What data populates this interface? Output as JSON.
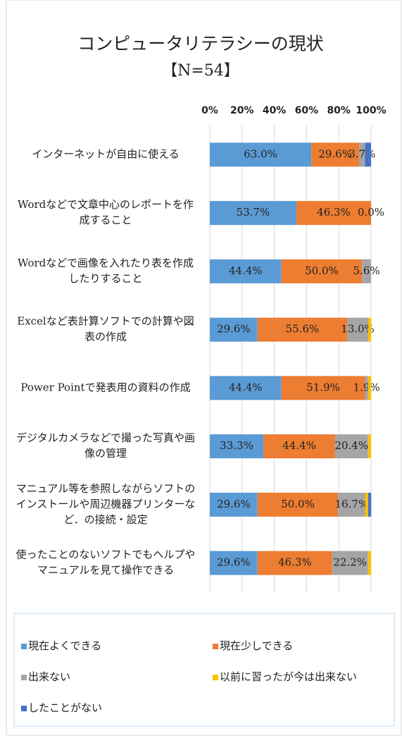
{
  "chart_data": {
    "type": "stacked_bar_horizontal",
    "title": "コンピュータリテラシーの現状",
    "subtitle": "【N=54】",
    "categories": [
      "インターネットが自由に使える",
      "Wordなどで文章中心のレポートを作成すること",
      "Wordなどで画像を入れたり表を作成したりすること",
      "Excelなど表計算ソフトでの計算や図表の作成",
      "Power Pointで発表用の資料の作成",
      "デジタルカメラなどで撮った写真や画像の管理",
      "マニュアル等を参照しながらソフトのインストールや周辺機器プリンターなど．の接続・設定",
      "使ったことのないソフトでもヘルプやマニュアルを見て操作できる"
    ],
    "series": [
      {
        "name": "現在よくできる",
        "color": "#5b9bd5",
        "values": [
          63.0,
          53.7,
          44.4,
          29.6,
          44.4,
          33.3,
          29.6,
          29.6
        ],
        "value_labels": [
          "63.0%",
          "53.7%",
          "44.4%",
          "29.6%",
          "44.4%",
          "33.3%",
          "29.6%",
          "29.6%"
        ]
      },
      {
        "name": "現在少しできる",
        "color": "#ed7d31",
        "values": [
          29.6,
          46.3,
          50.0,
          55.6,
          51.9,
          44.4,
          50.0,
          46.3
        ],
        "value_labels": [
          "29.6%",
          "46.3%",
          "50.0%",
          "55.6%",
          "51.9%",
          "44.4%",
          "50.0%",
          "46.3%"
        ]
      },
      {
        "name": "出来ない",
        "color": "#a5a5a5",
        "values": [
          3.7,
          0.0,
          5.6,
          13.0,
          1.9,
          20.4,
          16.7,
          22.2
        ],
        "value_labels": [
          "3.7%",
          "0.0%",
          "5.6%",
          "13.0%",
          "1.9%",
          "20.4%",
          "16.7%",
          "22.2%"
        ]
      },
      {
        "name": "以前に習ったが今は出来ない",
        "color": "#ffc000",
        "values": [
          0,
          0,
          0,
          1.9,
          1.9,
          1.9,
          1.9,
          1.9
        ]
      },
      {
        "name": "したことがない",
        "color": "#4472c4",
        "values": [
          3.7,
          0,
          0,
          0,
          0,
          0,
          1.9,
          0
        ]
      }
    ],
    "xlim": [
      0,
      100
    ],
    "xticks": [
      {
        "value": 0,
        "label": "0%"
      },
      {
        "value": 20,
        "label": "20%"
      },
      {
        "value": 40,
        "label": "40%"
      },
      {
        "value": 60,
        "label": "60%"
      },
      {
        "value": 80,
        "label": "80%"
      },
      {
        "value": 100,
        "label": "100%"
      }
    ],
    "grid": true,
    "legend": "bottom"
  }
}
